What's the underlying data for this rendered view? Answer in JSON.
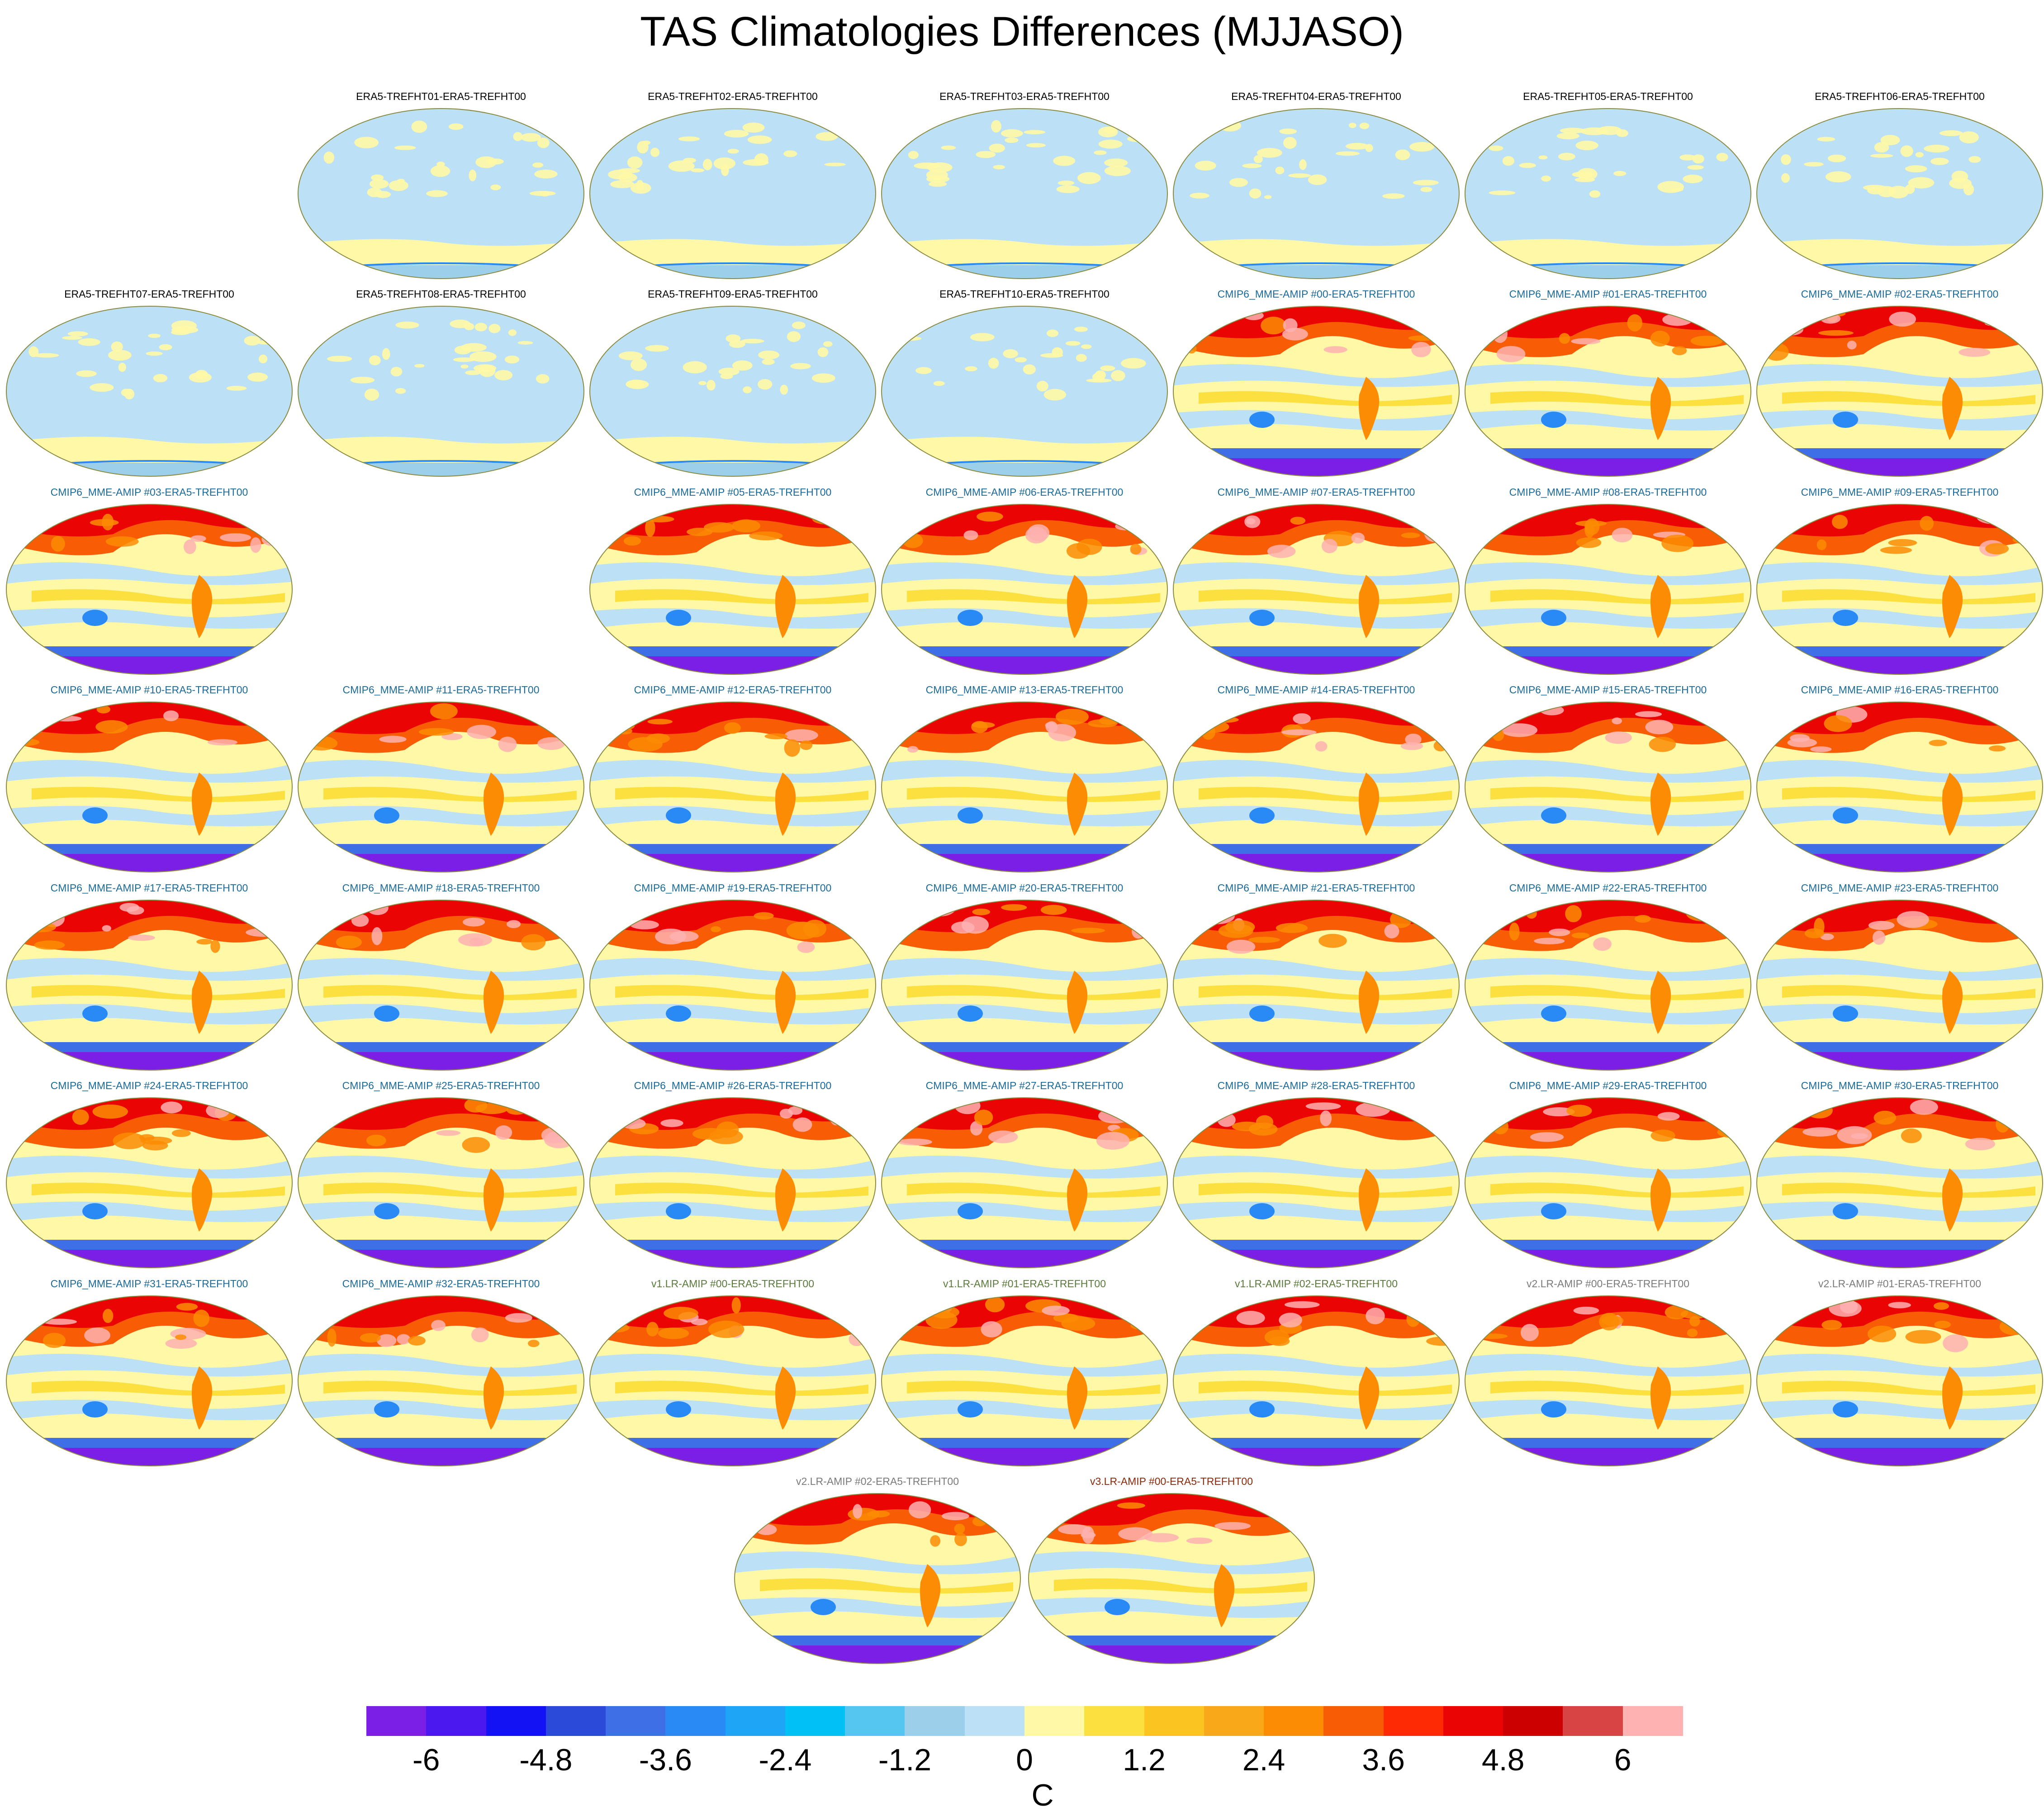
{
  "title": "TAS Climatologies Differences (MJJASO)",
  "colorbar": {
    "unit": "C",
    "colors": [
      "#7b1fe6",
      "#4b19f0",
      "#1212f5",
      "#2b4ad9",
      "#3e6fe6",
      "#2a8af5",
      "#1fa5f5",
      "#00c0f5",
      "#55c6f0",
      "#9ccfea",
      "#bce0f5",
      "#fff8a6",
      "#fbe040",
      "#fcc420",
      "#f8a818",
      "#fc8c04",
      "#f85c04",
      "#fe2a04",
      "#ea0404",
      "#cc0000",
      "#d84444",
      "#feb2b2"
    ],
    "ticks": [
      "-6",
      "-4.8",
      "-3.6",
      "-2.4",
      "-1.2",
      "0",
      "1.2",
      "2.4",
      "3.6",
      "4.8",
      "6"
    ]
  },
  "panels": [
    {
      "title": "ERA5-TREFHT01-ERA5-TREFHT00",
      "group": "era"
    },
    {
      "title": "ERA5-TREFHT02-ERA5-TREFHT00",
      "group": "era"
    },
    {
      "title": "ERA5-TREFHT03-ERA5-TREFHT00",
      "group": "era"
    },
    {
      "title": "ERA5-TREFHT04-ERA5-TREFHT00",
      "group": "era"
    },
    {
      "title": "ERA5-TREFHT05-ERA5-TREFHT00",
      "group": "era"
    },
    {
      "title": "ERA5-TREFHT06-ERA5-TREFHT00",
      "group": "era"
    },
    {
      "title": "ERA5-TREFHT07-ERA5-TREFHT00",
      "group": "era"
    },
    {
      "title": "ERA5-TREFHT08-ERA5-TREFHT00",
      "group": "era"
    },
    {
      "title": "ERA5-TREFHT09-ERA5-TREFHT00",
      "group": "era"
    },
    {
      "title": "ERA5-TREFHT10-ERA5-TREFHT00",
      "group": "era"
    },
    {
      "title": "CMIP6_MME-AMIP  #00-ERA5-TREFHT00",
      "group": "cmip"
    },
    {
      "title": "CMIP6_MME-AMIP  #01-ERA5-TREFHT00",
      "group": "cmip"
    },
    {
      "title": "CMIP6_MME-AMIP  #02-ERA5-TREFHT00",
      "group": "cmip"
    },
    {
      "title": "CMIP6_MME-AMIP  #03-ERA5-TREFHT00",
      "group": "cmip"
    },
    {
      "title": "CMIP6_MME-AMIP  #05-ERA5-TREFHT00",
      "group": "cmip"
    },
    {
      "title": "CMIP6_MME-AMIP  #06-ERA5-TREFHT00",
      "group": "cmip"
    },
    {
      "title": "CMIP6_MME-AMIP  #07-ERA5-TREFHT00",
      "group": "cmip"
    },
    {
      "title": "CMIP6_MME-AMIP  #08-ERA5-TREFHT00",
      "group": "cmip"
    },
    {
      "title": "CMIP6_MME-AMIP  #09-ERA5-TREFHT00",
      "group": "cmip"
    },
    {
      "title": "CMIP6_MME-AMIP  #10-ERA5-TREFHT00",
      "group": "cmip"
    },
    {
      "title": "CMIP6_MME-AMIP  #11-ERA5-TREFHT00",
      "group": "cmip"
    },
    {
      "title": "CMIP6_MME-AMIP  #12-ERA5-TREFHT00",
      "group": "cmip"
    },
    {
      "title": "CMIP6_MME-AMIP  #13-ERA5-TREFHT00",
      "group": "cmip"
    },
    {
      "title": "CMIP6_MME-AMIP  #14-ERA5-TREFHT00",
      "group": "cmip"
    },
    {
      "title": "CMIP6_MME-AMIP  #15-ERA5-TREFHT00",
      "group": "cmip"
    },
    {
      "title": "CMIP6_MME-AMIP  #16-ERA5-TREFHT00",
      "group": "cmip"
    },
    {
      "title": "CMIP6_MME-AMIP  #17-ERA5-TREFHT00",
      "group": "cmip"
    },
    {
      "title": "CMIP6_MME-AMIP  #18-ERA5-TREFHT00",
      "group": "cmip"
    },
    {
      "title": "CMIP6_MME-AMIP  #19-ERA5-TREFHT00",
      "group": "cmip"
    },
    {
      "title": "CMIP6_MME-AMIP  #20-ERA5-TREFHT00",
      "group": "cmip"
    },
    {
      "title": "CMIP6_MME-AMIP  #21-ERA5-TREFHT00",
      "group": "cmip"
    },
    {
      "title": "CMIP6_MME-AMIP  #22-ERA5-TREFHT00",
      "group": "cmip"
    },
    {
      "title": "CMIP6_MME-AMIP  #23-ERA5-TREFHT00",
      "group": "cmip"
    },
    {
      "title": "CMIP6_MME-AMIP  #24-ERA5-TREFHT00",
      "group": "cmip"
    },
    {
      "title": "CMIP6_MME-AMIP  #25-ERA5-TREFHT00",
      "group": "cmip"
    },
    {
      "title": "CMIP6_MME-AMIP  #26-ERA5-TREFHT00",
      "group": "cmip"
    },
    {
      "title": "CMIP6_MME-AMIP  #27-ERA5-TREFHT00",
      "group": "cmip"
    },
    {
      "title": "CMIP6_MME-AMIP  #28-ERA5-TREFHT00",
      "group": "cmip"
    },
    {
      "title": "CMIP6_MME-AMIP  #29-ERA5-TREFHT00",
      "group": "cmip"
    },
    {
      "title": "CMIP6_MME-AMIP  #30-ERA5-TREFHT00",
      "group": "cmip"
    },
    {
      "title": "CMIP6_MME-AMIP  #31-ERA5-TREFHT00",
      "group": "cmip"
    },
    {
      "title": "CMIP6_MME-AMIP  #32-ERA5-TREFHT00",
      "group": "cmip"
    },
    {
      "title": "v1.LR-AMIP  #00-ERA5-TREFHT00",
      "group": "v1"
    },
    {
      "title": "v1.LR-AMIP  #01-ERA5-TREFHT00",
      "group": "v1"
    },
    {
      "title": "v1.LR-AMIP  #02-ERA5-TREFHT00",
      "group": "v1"
    },
    {
      "title": "v2.LR-AMIP  #00-ERA5-TREFHT00",
      "group": "v2"
    },
    {
      "title": "v2.LR-AMIP  #01-ERA5-TREFHT00",
      "group": "v2"
    },
    {
      "title": "v2.LR-AMIP  #02-ERA5-TREFHT00",
      "group": "v2"
    },
    {
      "title": "v3.LR-AMIP  #00-ERA5-TREFHT00",
      "group": "v3"
    }
  ],
  "group_title_colors": {
    "era": "#000000",
    "cmip": "#1a6a9a",
    "v1": "#5a7a3a",
    "v2": "#7a7a7a",
    "v3": "#8a2a0a"
  }
}
